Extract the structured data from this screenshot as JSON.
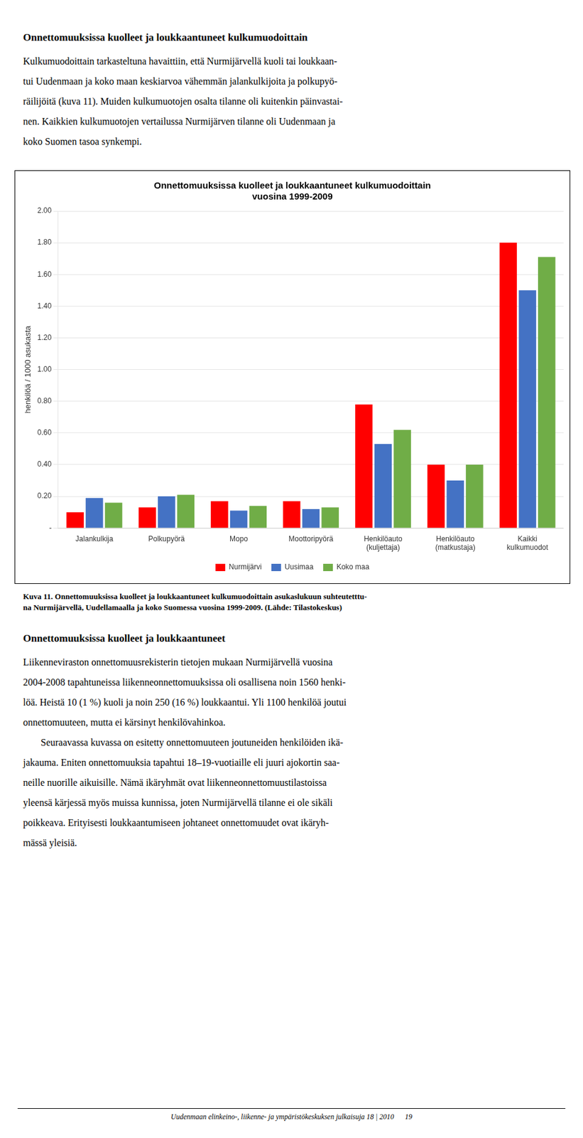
{
  "page": {
    "heading": "Onnettomuuksissa kuolleet ja loukkaantuneet kulkumuodoittain",
    "paragraph": [
      "Kulkumuodoittain tarkasteltuna havaittiin, että Nurmijärvellä kuoli tai loukkaan-",
      "tui Uudenmaan ja koko maan keskiarvoa vähemmän jalankulkijoita ja polkupyö-",
      "räilijöitä (kuva 11). Muiden kulkumuotojen osalta tilanne oli kuitenkin päinvastai-",
      "nen. Kaikkien kulkumuotojen vertailussa Nurmijärven tilanne oli Uudenmaan ja",
      "koko Suomen tasoa synkempi."
    ],
    "caption": [
      "Kuva 11. Onnettomuuksissa kuolleet ja loukkaantuneet kulkumuodoittain asukaslukuun suhteutetttu-",
      "na Nurmijärvellä, Uudellamaalla ja koko Suomessa vuosina 1999-2009. (Lähde: Tilastokeskus)"
    ],
    "section_heading": "Onnettomuuksissa kuolleet ja loukkaantuneet",
    "body": [
      [
        "Liikenneviraston onnettomuusrekisterin tietojen mukaan Nurmijärvellä vuosina",
        "2004-2008 tapahtuneissa liikenneonnettomuuksissa oli osallisena noin 1560 henki-",
        "löä. Heistä 10 (1 %) kuoli ja noin 250 (16 %) loukkaantui. Yli 1100 henkilöä joutui",
        "onnettomuuteen, mutta ei kärsinyt henkilövahinkoa."
      ],
      [
        "Seuraavassa kuvassa on esitetty onnettomuuteen joutuneiden henkilöiden ikä-",
        "jakauma. Eniten onnettomuuksia tapahtui 18–19-vuotiaille eli juuri ajokortin saa-",
        "neille nuorille aikuisille. Nämä ikäryhmät ovat liikenneonnettomuustilastoissa",
        "yleensä kärjessä myös muissa kunnissa, joten Nurmijärvellä tilanne ei ole sikäli",
        "poikkeava. Erityisesti loukkaantumiseen johtaneet onnettomuudet ovat ikäryh-",
        "mässä yleisiä."
      ]
    ],
    "footer": "Uudenmaan elinkeino-, liikenne- ja ympäristökeskuksen julkaisuja 18 | 2010      19"
  },
  "chart_data": {
    "type": "bar",
    "title": "Onnettomuuksissa kuolleet ja loukkaantuneet kulkumuodoittain\nvuosina 1999-2009",
    "ylabel": "henkilöä / 1000 asukasta",
    "categories": [
      "Jalankulkija",
      "Polkupyörä",
      "Mopo",
      "Moottoripyörä",
      "Henkilöauto\n(kuljettaja)",
      "Henkilöauto\n(matkustaja)",
      "Kaikki\nkulkumuodot"
    ],
    "series": [
      {
        "name": "Nurmijärvi",
        "color": "#FF0000",
        "values": [
          0.1,
          0.13,
          0.17,
          0.17,
          0.78,
          0.4,
          1.8
        ]
      },
      {
        "name": "Uusimaa",
        "color": "#4472C4",
        "values": [
          0.19,
          0.2,
          0.11,
          0.12,
          0.53,
          0.3,
          1.5
        ]
      },
      {
        "name": "Koko maa",
        "color": "#70AD47",
        "values": [
          0.16,
          0.21,
          0.14,
          0.13,
          0.62,
          0.4,
          1.71
        ]
      }
    ],
    "ylim": [
      0,
      2.0
    ],
    "yticks": [
      {
        "value": 0,
        "label": "-"
      },
      {
        "value": 0.2,
        "label": "0.20"
      },
      {
        "value": 0.4,
        "label": "0.40"
      },
      {
        "value": 0.6,
        "label": "0.60"
      },
      {
        "value": 0.8,
        "label": "0.80"
      },
      {
        "value": 1,
        "label": "1.00"
      },
      {
        "value": 1.2,
        "label": "1.20"
      },
      {
        "value": 1.4,
        "label": "1.40"
      },
      {
        "value": 1.6,
        "label": "1.60"
      },
      {
        "value": 1.8,
        "label": "1.80"
      },
      {
        "value": 2,
        "label": "2.00"
      }
    ],
    "grid": true,
    "legend": "bottom"
  }
}
